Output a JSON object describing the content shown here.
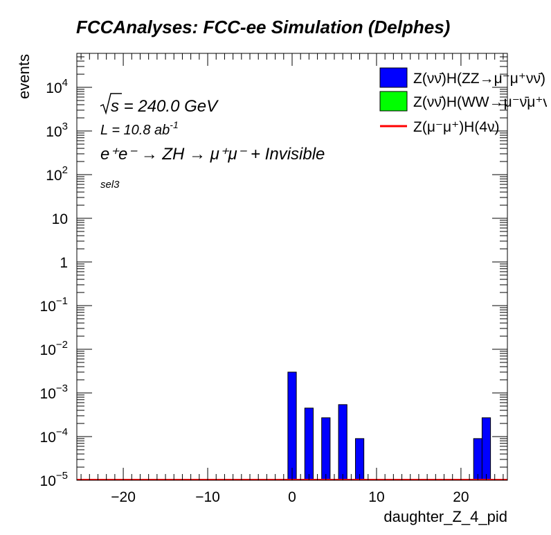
{
  "chart_data": {
    "type": "bar",
    "title": "FCCAnalyses: FCC-ee Simulation (Delphes)",
    "xlabel": "daughter_Z_4_pid",
    "ylabel": "events",
    "xlim": [
      -25.5,
      25.5
    ],
    "ylim": [
      1e-05,
      60000
    ],
    "yscale": "log",
    "grid": false,
    "legend_position": "top-right",
    "x_ticks": [
      -20,
      -10,
      0,
      10,
      20
    ],
    "x_tick_labels": [
      "−20",
      "−10",
      "0",
      "10",
      "20"
    ],
    "y_ticks": [
      {
        "value": 1e-05,
        "base": "10",
        "exp": "−5"
      },
      {
        "value": 0.0001,
        "base": "10",
        "exp": "−4"
      },
      {
        "value": 0.001,
        "base": "10",
        "exp": "−3"
      },
      {
        "value": 0.01,
        "base": "10",
        "exp": "−2"
      },
      {
        "value": 0.1,
        "base": "10",
        "exp": "−1"
      },
      {
        "value": 1,
        "base": "1",
        "exp": ""
      },
      {
        "value": 10,
        "base": "10",
        "exp": ""
      },
      {
        "value": 100,
        "base": "10",
        "exp": "2"
      },
      {
        "value": 1000,
        "base": "10",
        "exp": "3"
      },
      {
        "value": 10000,
        "base": "10",
        "exp": "4"
      }
    ],
    "series": [
      {
        "name": "Z(νν̄)H(ZZ→μ⁻μ⁺νν̄)",
        "kind": "bar",
        "color": "#0000ff",
        "bin_width": 1,
        "points": [
          {
            "x": 0,
            "y": 0.003
          },
          {
            "x": 2,
            "y": 0.00045
          },
          {
            "x": 4,
            "y": 0.00027
          },
          {
            "x": 6,
            "y": 0.00054
          },
          {
            "x": 8,
            "y": 9e-05
          },
          {
            "x": 22,
            "y": 9e-05
          },
          {
            "x": 23,
            "y": 0.00027
          }
        ]
      },
      {
        "name": "Z(νν̄)H(WW→μ⁻ν̄μ⁺ν)",
        "kind": "bar",
        "color": "#00ff00",
        "points": []
      },
      {
        "name": "Z(μ⁻μ⁺)H(4ν)",
        "kind": "line",
        "color": "#ff0000",
        "points": []
      }
    ],
    "annotations": {
      "sqrt_s": "s = 240.0 GeV",
      "lumi": "L = 10.8 ab",
      "lumi_exp": "-1",
      "process": "e⁺e⁻ → ZH → μ⁺μ⁻ + Invisible",
      "selection": "sel3"
    }
  }
}
